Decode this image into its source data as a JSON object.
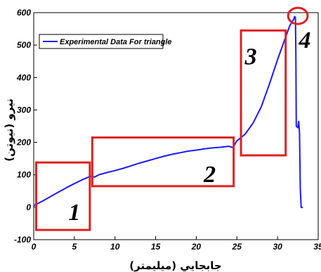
{
  "chart_data": {
    "type": "line",
    "title": "",
    "xlabel": "جابجايي (ميليمتر)",
    "ylabel": "نيرو (نيوتن)",
    "xlim": [
      0,
      35
    ],
    "ylim": [
      -100,
      600
    ],
    "xticks": [
      "0",
      "5",
      "10",
      "15",
      "20",
      "25",
      "30",
      "35"
    ],
    "yticks": [
      "-100",
      "0",
      "100",
      "200",
      "300",
      "400",
      "500",
      "600"
    ],
    "grid": false,
    "legend_position": "top-left",
    "series": [
      {
        "name": "Experimental Data For triangle",
        "color": "#1a1aff",
        "x": [
          0,
          1,
          2,
          3,
          4,
          5,
          6,
          7,
          7.5,
          8,
          9,
          10,
          11,
          12,
          13,
          14,
          15,
          16,
          17,
          18,
          19,
          20,
          21,
          22,
          23,
          24,
          24.5,
          25,
          26,
          27,
          28,
          29,
          30,
          31,
          31.5,
          32,
          32.1,
          32.2,
          32.25,
          32.3,
          32.5,
          32.6,
          32.7,
          32.8,
          32.9,
          33,
          33.1
        ],
        "y": [
          5,
          18,
          32,
          46,
          60,
          73,
          85,
          96,
          93,
          100,
          107,
          113,
          120,
          128,
          136,
          143,
          150,
          157,
          163,
          168,
          173,
          176,
          180,
          183,
          185,
          188,
          184,
          205,
          225,
          260,
          310,
          380,
          455,
          525,
          560,
          580,
          588,
          585,
          480,
          250,
          245,
          265,
          230,
          60,
          0,
          0,
          -2
        ]
      }
    ],
    "annotations": [
      {
        "label": "1",
        "x_range": [
          0.3,
          6.9
        ],
        "y_range": [
          -70,
          138
        ]
      },
      {
        "label": "2",
        "x_range": [
          7.2,
          24.6
        ],
        "y_range": [
          65,
          215
        ]
      },
      {
        "label": "3",
        "x_range": [
          25.5,
          31.0
        ],
        "y_range": [
          160,
          545
        ]
      },
      {
        "label": "4",
        "x_range": [
          31.3,
          33.7
        ],
        "y_range": [
          565,
          615
        ]
      }
    ]
  }
}
